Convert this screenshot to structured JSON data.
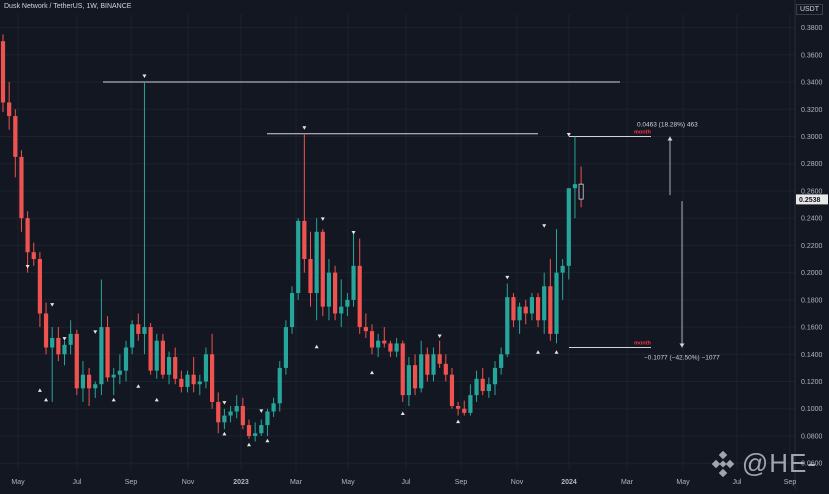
{
  "header": {
    "title": "Dusk Network / TetherUS, 1W, BINANCE",
    "currency": "USDT"
  },
  "watermark": "@HE-",
  "colors": {
    "bg": "#131722",
    "up": "#26a69a",
    "down": "#ef5350",
    "grid": "#1e222d",
    "text": "#b2b5be",
    "line": "#d1d4dc",
    "label_red": "#f23645"
  },
  "chart_data": {
    "type": "candlestick",
    "symbol": "Dusk Network / TetherUS",
    "interval": "1W",
    "exchange": "BINANCE",
    "ylim": [
      0.055,
      0.39
    ],
    "y_ticks": [
      "0.0600",
      "0.0800",
      "0.1000",
      "0.1200",
      "0.1400",
      "0.1600",
      "0.1800",
      "0.2000",
      "0.2200",
      "0.2400",
      "0.2600",
      "0.2800",
      "0.3000",
      "0.3200",
      "0.3400",
      "0.3600",
      "0.3800"
    ],
    "x_ticks": [
      "May",
      "Jul",
      "Sep",
      "Nov",
      "2023",
      "Mar",
      "May",
      "Jul",
      "Sep",
      "Nov",
      "2024",
      "Mar",
      "May",
      "Jul",
      "Sep"
    ],
    "last_price": "0.2538",
    "candles": [
      [
        0.37,
        0.375,
        0.318,
        0.325
      ],
      [
        0.325,
        0.34,
        0.305,
        0.315
      ],
      [
        0.315,
        0.32,
        0.27,
        0.285
      ],
      [
        0.285,
        0.29,
        0.23,
        0.24
      ],
      [
        0.24,
        0.245,
        0.2,
        0.215
      ],
      [
        0.215,
        0.222,
        0.205,
        0.21
      ],
      [
        0.21,
        0.215,
        0.16,
        0.17
      ],
      [
        0.17,
        0.178,
        0.14,
        0.145
      ],
      [
        0.145,
        0.16,
        0.105,
        0.152
      ],
      [
        0.152,
        0.16,
        0.135,
        0.14
      ],
      [
        0.14,
        0.15,
        0.132,
        0.147
      ],
      [
        0.147,
        0.165,
        0.14,
        0.155
      ],
      [
        0.155,
        0.158,
        0.11,
        0.115
      ],
      [
        0.115,
        0.135,
        0.105,
        0.125
      ],
      [
        0.125,
        0.13,
        0.102,
        0.115
      ],
      [
        0.115,
        0.12,
        0.108,
        0.118
      ],
      [
        0.118,
        0.195,
        0.11,
        0.16
      ],
      [
        0.16,
        0.168,
        0.12,
        0.123
      ],
      [
        0.123,
        0.13,
        0.11,
        0.125
      ],
      [
        0.125,
        0.14,
        0.118,
        0.128
      ],
      [
        0.128,
        0.15,
        0.12,
        0.145
      ],
      [
        0.145,
        0.165,
        0.14,
        0.162
      ],
      [
        0.162,
        0.17,
        0.15,
        0.155
      ],
      [
        0.155,
        0.34,
        0.14,
        0.16
      ],
      [
        0.16,
        0.163,
        0.125,
        0.128
      ],
      [
        0.128,
        0.155,
        0.122,
        0.15
      ],
      [
        0.15,
        0.155,
        0.122,
        0.125
      ],
      [
        0.125,
        0.142,
        0.118,
        0.138
      ],
      [
        0.138,
        0.145,
        0.118,
        0.122
      ],
      [
        0.122,
        0.128,
        0.112,
        0.116
      ],
      [
        0.116,
        0.128,
        0.112,
        0.125
      ],
      [
        0.125,
        0.138,
        0.112,
        0.118
      ],
      [
        0.118,
        0.125,
        0.11,
        0.12
      ],
      [
        0.12,
        0.145,
        0.115,
        0.14
      ],
      [
        0.14,
        0.155,
        0.1,
        0.105
      ],
      [
        0.105,
        0.112,
        0.082,
        0.09
      ],
      [
        0.09,
        0.1,
        0.085,
        0.095
      ],
      [
        0.095,
        0.102,
        0.09,
        0.098
      ],
      [
        0.098,
        0.11,
        0.093,
        0.102
      ],
      [
        0.102,
        0.108,
        0.085,
        0.088
      ],
      [
        0.088,
        0.092,
        0.078,
        0.08
      ],
      [
        0.08,
        0.09,
        0.076,
        0.082
      ],
      [
        0.082,
        0.092,
        0.08,
        0.088
      ],
      [
        0.088,
        0.1,
        0.08,
        0.098
      ],
      [
        0.098,
        0.108,
        0.094,
        0.104
      ],
      [
        0.104,
        0.135,
        0.098,
        0.13
      ],
      [
        0.13,
        0.165,
        0.125,
        0.16
      ],
      [
        0.16,
        0.19,
        0.155,
        0.185
      ],
      [
        0.185,
        0.24,
        0.18,
        0.238
      ],
      [
        0.238,
        0.302,
        0.2,
        0.21
      ],
      [
        0.21,
        0.23,
        0.175,
        0.185
      ],
      [
        0.185,
        0.24,
        0.165,
        0.23
      ],
      [
        0.23,
        0.232,
        0.168,
        0.175
      ],
      [
        0.175,
        0.21,
        0.165,
        0.2
      ],
      [
        0.2,
        0.205,
        0.165,
        0.17
      ],
      [
        0.17,
        0.195,
        0.16,
        0.175
      ],
      [
        0.175,
        0.185,
        0.168,
        0.18
      ],
      [
        0.18,
        0.23,
        0.175,
        0.205
      ],
      [
        0.205,
        0.225,
        0.155,
        0.16
      ],
      [
        0.16,
        0.17,
        0.152,
        0.157
      ],
      [
        0.157,
        0.162,
        0.14,
        0.145
      ],
      [
        0.145,
        0.155,
        0.138,
        0.15
      ],
      [
        0.15,
        0.16,
        0.145,
        0.148
      ],
      [
        0.148,
        0.15,
        0.138,
        0.142
      ],
      [
        0.142,
        0.152,
        0.138,
        0.148
      ],
      [
        0.148,
        0.15,
        0.105,
        0.11
      ],
      [
        0.11,
        0.138,
        0.102,
        0.132
      ],
      [
        0.132,
        0.14,
        0.11,
        0.115
      ],
      [
        0.115,
        0.15,
        0.112,
        0.14
      ],
      [
        0.14,
        0.145,
        0.12,
        0.125
      ],
      [
        0.125,
        0.145,
        0.12,
        0.14
      ],
      [
        0.14,
        0.15,
        0.13,
        0.133
      ],
      [
        0.133,
        0.14,
        0.12,
        0.125
      ],
      [
        0.125,
        0.13,
        0.1,
        0.102
      ],
      [
        0.102,
        0.105,
        0.095,
        0.1
      ],
      [
        0.1,
        0.106,
        0.095,
        0.097
      ],
      [
        0.097,
        0.118,
        0.095,
        0.11
      ],
      [
        0.11,
        0.128,
        0.105,
        0.122
      ],
      [
        0.122,
        0.13,
        0.11,
        0.113
      ],
      [
        0.113,
        0.123,
        0.108,
        0.118
      ],
      [
        0.118,
        0.135,
        0.11,
        0.13
      ],
      [
        0.13,
        0.145,
        0.125,
        0.14
      ],
      [
        0.14,
        0.192,
        0.138,
        0.182
      ],
      [
        0.182,
        0.185,
        0.16,
        0.165
      ],
      [
        0.165,
        0.178,
        0.155,
        0.175
      ],
      [
        0.175,
        0.18,
        0.162,
        0.17
      ],
      [
        0.17,
        0.185,
        0.165,
        0.182
      ],
      [
        0.182,
        0.185,
        0.16,
        0.165
      ],
      [
        0.165,
        0.2,
        0.155,
        0.19
      ],
      [
        0.19,
        0.21,
        0.15,
        0.155
      ],
      [
        0.155,
        0.232,
        0.148,
        0.2
      ],
      [
        0.2,
        0.21,
        0.18,
        0.205
      ],
      [
        0.205,
        0.262,
        0.195,
        0.262
      ],
      [
        0.262,
        0.3,
        0.24,
        0.265
      ],
      [
        0.265,
        0.278,
        0.248,
        0.254
      ]
    ],
    "markers_up": [
      {
        "i": 6,
        "v": 0.115
      },
      {
        "i": 7,
        "v": 0.108
      },
      {
        "i": 18,
        "v": 0.108
      },
      {
        "i": 22,
        "v": 0.118
      },
      {
        "i": 25,
        "v": 0.108
      },
      {
        "i": 36,
        "v": 0.083
      },
      {
        "i": 40,
        "v": 0.075
      },
      {
        "i": 43,
        "v": 0.078
      },
      {
        "i": 51,
        "v": 0.147
      },
      {
        "i": 60,
        "v": 0.128
      },
      {
        "i": 65,
        "v": 0.098
      },
      {
        "i": 74,
        "v": 0.092
      },
      {
        "i": 87,
        "v": 0.143
      },
      {
        "i": 90,
        "v": 0.143
      }
    ],
    "markers_down": [
      {
        "i": 4,
        "v": 0.203
      },
      {
        "i": 8,
        "v": 0.175
      },
      {
        "i": 10,
        "v": 0.15
      },
      {
        "i": 15,
        "v": 0.155
      },
      {
        "i": 23,
        "v": 0.343
      },
      {
        "i": 36,
        "v": 0.103
      },
      {
        "i": 42,
        "v": 0.097
      },
      {
        "i": 49,
        "v": 0.305
      },
      {
        "i": 52,
        "v": 0.238
      },
      {
        "i": 57,
        "v": 0.228
      },
      {
        "i": 71,
        "v": 0.152
      },
      {
        "i": 82,
        "v": 0.195
      },
      {
        "i": 88,
        "v": 0.233
      },
      {
        "i": 92,
        "v": 0.3
      }
    ],
    "annotations": {
      "hline_1": 0.34,
      "hline_2": 0.302,
      "upper_box_line": 0.3,
      "lower_box_line": 0.145,
      "upper_label": "month",
      "lower_label": "month",
      "upper_measure": "0.0463 (18.28%) 463",
      "lower_measure": "−0.1077 (−42.50%) −1077"
    }
  }
}
